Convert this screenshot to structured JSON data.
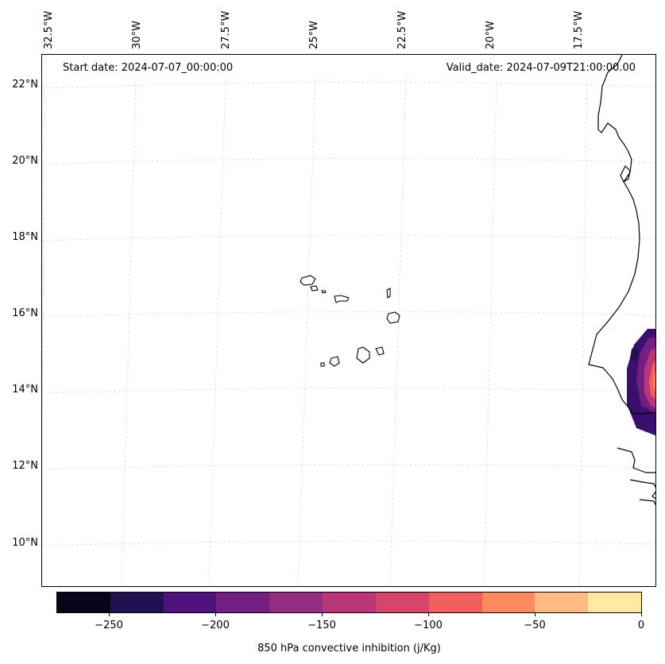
{
  "header": {
    "start_date": "Start date: 2024-07-07_00:00:00",
    "valid_date": "Valid_date: 2024-07-09T21:00:00.00"
  },
  "map": {
    "lat_labels": [
      "22°N",
      "20°N",
      "18°N",
      "16°N",
      "14°N",
      "12°N",
      "10°N"
    ],
    "lon_labels": [
      "32.5°W",
      "30°W",
      "27.5°W",
      "25°W",
      "22.5°W",
      "20°W",
      "17.5°W"
    ],
    "coastline_color": "#000000",
    "gridline_color": "#cccccc"
  },
  "colorbar": {
    "title": "850 hPa convective inhibition (j/Kg)",
    "tick_labels": [
      "−250",
      "−200",
      "−150",
      "−100",
      "−50",
      "0"
    ],
    "colors": [
      "#06051a",
      "#221150",
      "#4f127b",
      "#721f81",
      "#942c80",
      "#b73779",
      "#d8456c",
      "#f1605d",
      "#fe8a5f",
      "#febb81",
      "#fde9a4"
    ],
    "range": [
      -275,
      0
    ],
    "palette": "magma"
  }
}
